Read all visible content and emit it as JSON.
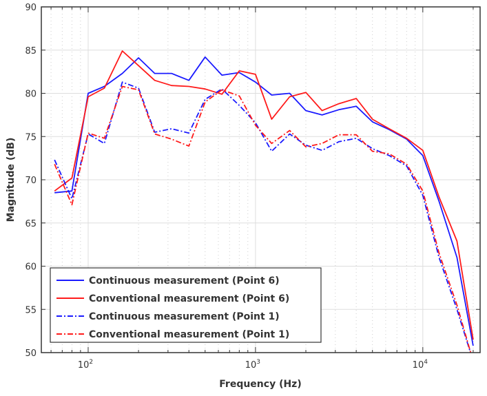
{
  "chart_data": {
    "type": "line",
    "title": "",
    "xlabel": "Frequency (Hz)",
    "ylabel": "Magnitude (dB)",
    "xscale": "log",
    "xlim": [
      52.5,
      22000
    ],
    "ylim": [
      50,
      90
    ],
    "grid": true,
    "legend_position": "bottom-left",
    "xticks": [
      {
        "value": 100,
        "base": "10",
        "exp": "2"
      },
      {
        "value": 1000,
        "base": "10",
        "exp": "3"
      },
      {
        "value": 10000,
        "base": "10",
        "exp": "4"
      }
    ],
    "yticks": [
      50,
      55,
      60,
      65,
      70,
      75,
      80,
      85,
      90
    ],
    "x": [
      63,
      80,
      100,
      125,
      160,
      200,
      250,
      315,
      400,
      500,
      630,
      800,
      1000,
      1250,
      1600,
      2000,
      2500,
      3150,
      4000,
      5000,
      6300,
      8000,
      10000,
      12500,
      16000,
      20000
    ],
    "series": [
      {
        "name": "Continuous measurement (Point 6)",
        "color": "#1a1aff",
        "style": "solid",
        "values": [
          68.5,
          68.7,
          80.0,
          80.8,
          82.3,
          84.1,
          82.3,
          82.3,
          81.5,
          84.2,
          82.1,
          82.4,
          81.3,
          79.8,
          80.0,
          78.0,
          77.5,
          78.1,
          78.5,
          76.7,
          75.8,
          74.7,
          72.8,
          67.5,
          61.0,
          50.8
        ]
      },
      {
        "name": "Conventional measurement (Point 6)",
        "color": "#ff1a1a",
        "style": "solid",
        "values": [
          68.7,
          70.2,
          79.6,
          80.6,
          84.9,
          83.2,
          81.5,
          80.9,
          80.8,
          80.5,
          79.9,
          82.6,
          82.2,
          77.0,
          79.6,
          80.1,
          78.0,
          78.8,
          79.4,
          77.0,
          75.9,
          74.8,
          73.4,
          68.0,
          62.9,
          51.5
        ]
      },
      {
        "name": "Continuous measurement (Point 1)",
        "color": "#1a1aff",
        "style": "dashdot",
        "values": [
          72.3,
          67.8,
          75.3,
          74.2,
          81.3,
          80.6,
          75.5,
          75.9,
          75.4,
          79.3,
          80.5,
          78.6,
          76.6,
          73.3,
          75.3,
          74.0,
          73.4,
          74.4,
          74.8,
          73.6,
          72.8,
          71.6,
          68.2,
          61.0,
          55.0,
          49.0
        ]
      },
      {
        "name": "Conventional measurement (Point 1)",
        "color": "#ff1a1a",
        "style": "dashdot",
        "values": [
          71.8,
          67.1,
          75.4,
          74.8,
          80.8,
          80.4,
          75.3,
          74.7,
          73.9,
          79.0,
          80.4,
          79.7,
          76.3,
          74.2,
          75.7,
          73.8,
          74.2,
          75.2,
          75.2,
          73.3,
          73.0,
          71.8,
          68.7,
          61.5,
          55.5,
          49.0
        ]
      }
    ]
  }
}
